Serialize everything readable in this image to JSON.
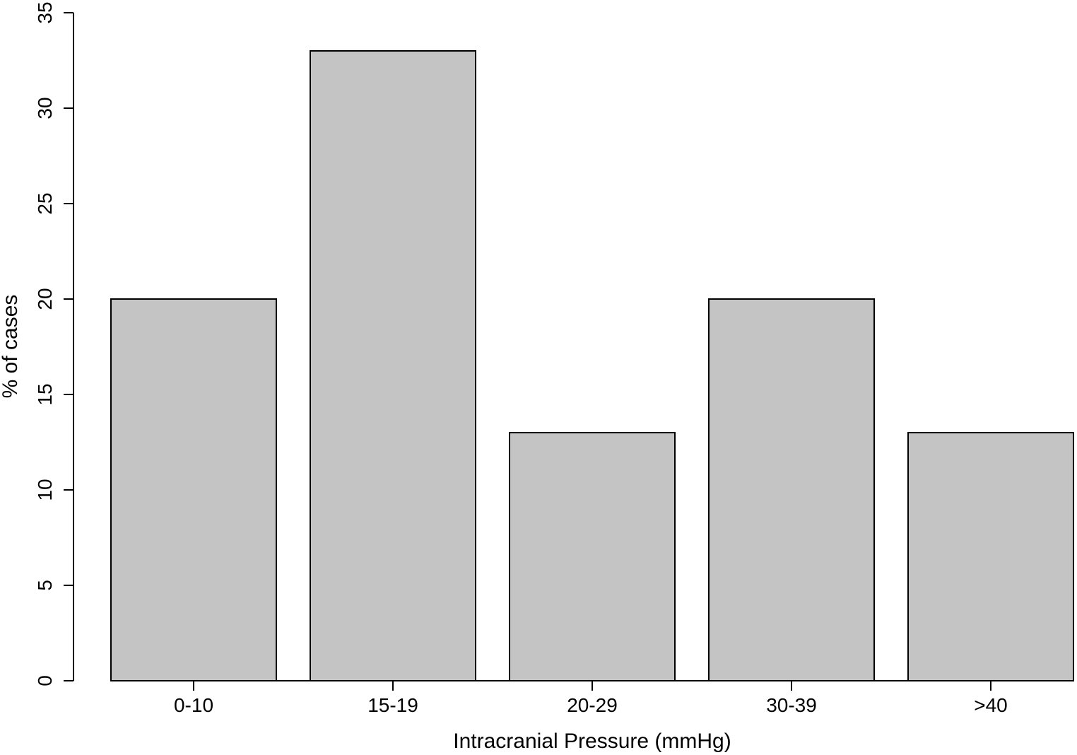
{
  "chart_data": {
    "type": "bar",
    "categories": [
      "0-10",
      "15-19",
      "20-29",
      "30-39",
      ">40"
    ],
    "values": [
      20,
      33,
      13,
      20,
      13
    ],
    "title": "",
    "xlabel": "Intracranial Pressure (mmHg)",
    "ylabel": "% of cases",
    "ylim": [
      0,
      35
    ],
    "yticks": [
      0,
      5,
      10,
      15,
      20,
      25,
      30,
      35
    ],
    "grid": false,
    "bar_color": "#c4c4c4",
    "bar_edge_color": "#000000"
  }
}
